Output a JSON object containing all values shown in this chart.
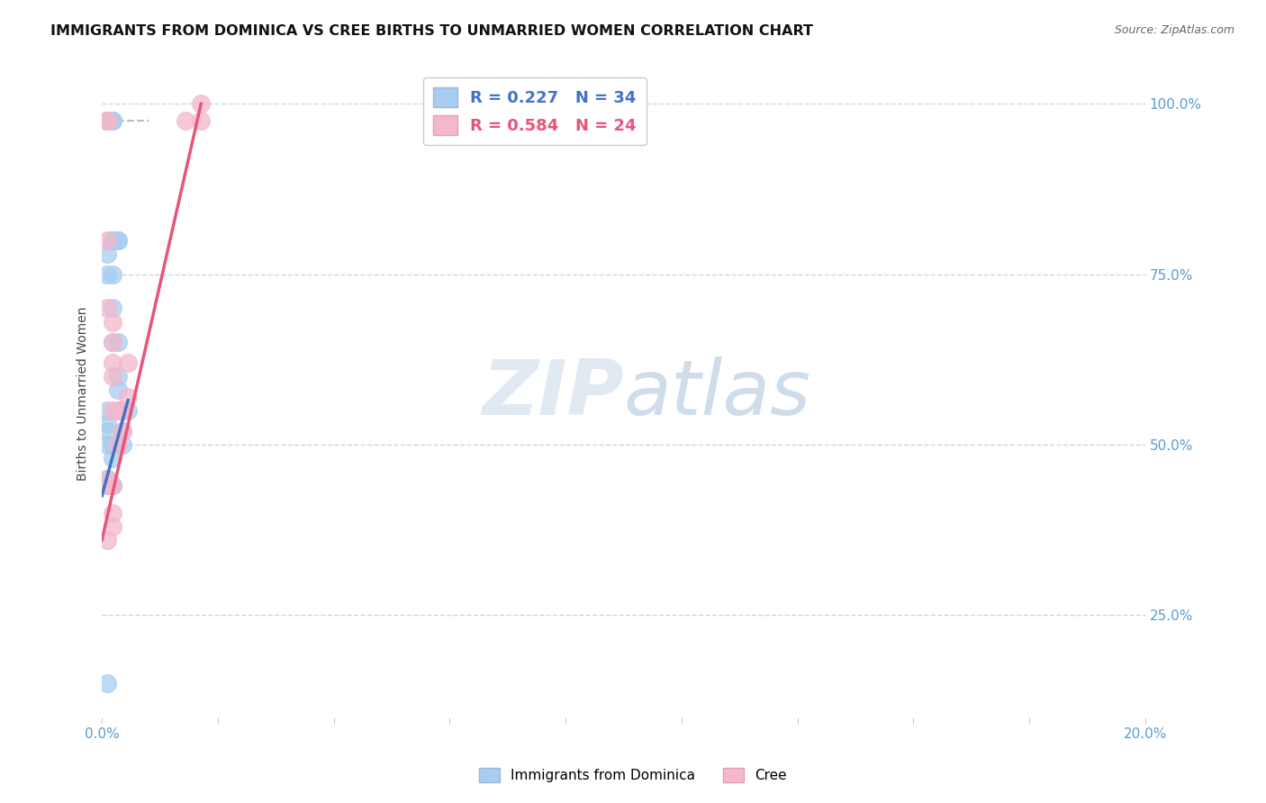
{
  "title": "IMMIGRANTS FROM DOMINICA VS CREE BIRTHS TO UNMARRIED WOMEN CORRELATION CHART",
  "source": "Source: ZipAtlas.com",
  "ylabel": "Births to Unmarried Women",
  "legend_blue": "R = 0.227   N = 34",
  "legend_pink": "R = 0.584   N = 24",
  "legend_label_blue": "Immigrants from Dominica",
  "legend_label_pink": "Cree",
  "watermark_zip": "ZIP",
  "watermark_atlas": "atlas",
  "blue_scatter_x": [
    0.001,
    0.001,
    0.002,
    0.002,
    0.002,
    0.002,
    0.003,
    0.003,
    0.001,
    0.001,
    0.002,
    0.002,
    0.002,
    0.003,
    0.003,
    0.003,
    0.001,
    0.001,
    0.001,
    0.001,
    0.002,
    0.002,
    0.003,
    0.004,
    0.004,
    0.004,
    0.004,
    0.005,
    0.001,
    0.001,
    0.001,
    0.002,
    0.002,
    0.001
  ],
  "blue_scatter_y": [
    0.975,
    0.975,
    0.975,
    0.975,
    0.8,
    0.8,
    0.8,
    0.8,
    0.78,
    0.75,
    0.75,
    0.7,
    0.65,
    0.65,
    0.6,
    0.58,
    0.55,
    0.53,
    0.52,
    0.5,
    0.5,
    0.48,
    0.55,
    0.55,
    0.55,
    0.52,
    0.5,
    0.55,
    0.45,
    0.45,
    0.44,
    0.44,
    0.44,
    0.15
  ],
  "pink_scatter_x": [
    0.001,
    0.001,
    0.001,
    0.001,
    0.002,
    0.002,
    0.002,
    0.002,
    0.002,
    0.003,
    0.003,
    0.004,
    0.004,
    0.005,
    0.005,
    0.001,
    0.001,
    0.002,
    0.019,
    0.019,
    0.016,
    0.002,
    0.002,
    0.001
  ],
  "pink_scatter_y": [
    0.975,
    0.975,
    0.8,
    0.7,
    0.68,
    0.65,
    0.62,
    0.6,
    0.55,
    0.55,
    0.5,
    0.55,
    0.52,
    0.62,
    0.57,
    0.45,
    0.44,
    0.44,
    1.0,
    0.975,
    0.975,
    0.4,
    0.38,
    0.36
  ],
  "blue_line_x": [
    0.0,
    0.005
  ],
  "blue_line_y": [
    0.425,
    0.565
  ],
  "pink_line_x": [
    0.0,
    0.019
  ],
  "pink_line_y": [
    0.36,
    1.0
  ],
  "dashed_line_x": [
    0.001,
    0.009
  ],
  "dashed_line_y": [
    0.975,
    0.975
  ],
  "xlim": [
    0.0,
    0.2
  ],
  "ylim": [
    0.1,
    1.05
  ],
  "ytick_values": [
    0.25,
    0.5,
    0.75,
    1.0
  ],
  "ytick_labels": [
    "25.0%",
    "50.0%",
    "75.0%",
    "100.0%"
  ],
  "xtick_left_label": "0.0%",
  "xtick_right_label": "20.0%",
  "blue_color": "#a8cdf0",
  "pink_color": "#f4b8cc",
  "blue_line_color": "#4472c4",
  "pink_line_color": "#e8547a",
  "dashed_line_color": "#b8b8c8",
  "background_color": "#ffffff",
  "grid_color": "#d0d4e8",
  "tick_color": "#5b9bd5",
  "title_fontsize": 11.5,
  "source_fontsize": 9
}
